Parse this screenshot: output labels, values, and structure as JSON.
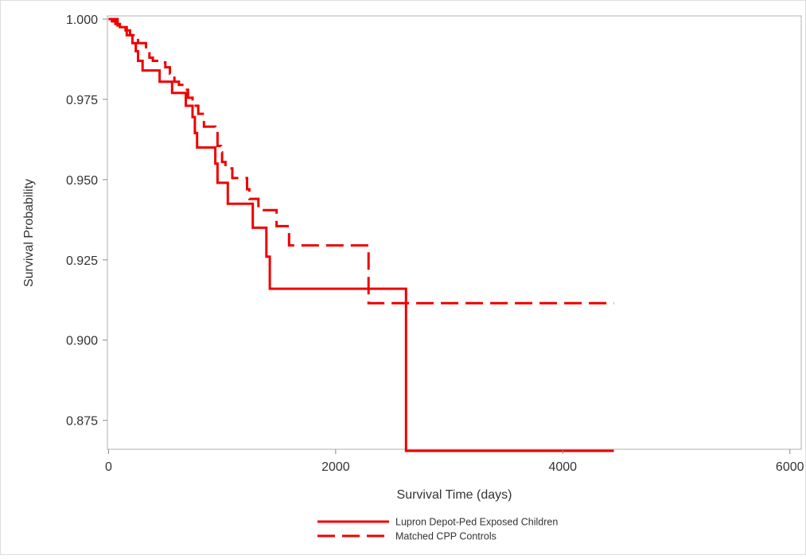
{
  "chart_data": {
    "type": "line",
    "step": true,
    "title": "",
    "xlabel": "Survival Time (days)",
    "ylabel": "Survival Probability",
    "xlim": [
      -10,
      6100
    ],
    "ylim": [
      0.866,
      1.001
    ],
    "xticks": [
      0,
      2000,
      4000,
      6000
    ],
    "yticks": [
      0.875,
      0.9,
      0.925,
      0.95,
      0.975,
      1.0
    ],
    "yticklabels": [
      "0.875",
      "0.900",
      "0.925",
      "0.950",
      "0.975",
      "1.000"
    ],
    "grid": false,
    "legend_position": "bottom",
    "color": "#ee0000",
    "series": [
      {
        "name": "Lupron Depot-Ped Exposed Children",
        "style": "solid",
        "points": [
          [
            0,
            1.0
          ],
          [
            30,
            0.9993
          ],
          [
            60,
            0.9985
          ],
          [
            100,
            0.9975
          ],
          [
            160,
            0.995
          ],
          [
            210,
            0.9925
          ],
          [
            240,
            0.99
          ],
          [
            260,
            0.987
          ],
          [
            300,
            0.984
          ],
          [
            450,
            0.9805
          ],
          [
            560,
            0.977
          ],
          [
            680,
            0.973
          ],
          [
            740,
            0.9695
          ],
          [
            760,
            0.9645
          ],
          [
            780,
            0.96
          ],
          [
            940,
            0.955
          ],
          [
            960,
            0.949
          ],
          [
            1050,
            0.9425
          ],
          [
            1270,
            0.935
          ],
          [
            1390,
            0.926
          ],
          [
            1420,
            0.916
          ],
          [
            2620,
            0.8655
          ],
          [
            4450,
            0.8655
          ]
        ]
      },
      {
        "name": "Matched CPP Controls",
        "style": "dashed",
        "points": [
          [
            0,
            1.0
          ],
          [
            80,
            0.998
          ],
          [
            150,
            0.9965
          ],
          [
            190,
            0.995
          ],
          [
            260,
            0.9925
          ],
          [
            330,
            0.9905
          ],
          [
            360,
            0.988
          ],
          [
            390,
            0.987
          ],
          [
            480,
            0.9865
          ],
          [
            500,
            0.985
          ],
          [
            540,
            0.983
          ],
          [
            580,
            0.9805
          ],
          [
            620,
            0.9795
          ],
          [
            660,
            0.978
          ],
          [
            700,
            0.9755
          ],
          [
            740,
            0.973
          ],
          [
            790,
            0.9705
          ],
          [
            840,
            0.9665
          ],
          [
            940,
            0.9645
          ],
          [
            960,
            0.9605
          ],
          [
            990,
            0.9585
          ],
          [
            1000,
            0.9555
          ],
          [
            1030,
            0.9535
          ],
          [
            1090,
            0.9505
          ],
          [
            1220,
            0.947
          ],
          [
            1240,
            0.944
          ],
          [
            1320,
            0.9405
          ],
          [
            1480,
            0.9355
          ],
          [
            1590,
            0.9295
          ],
          [
            2290,
            0.9115
          ],
          [
            4450,
            0.9115
          ]
        ]
      }
    ]
  }
}
